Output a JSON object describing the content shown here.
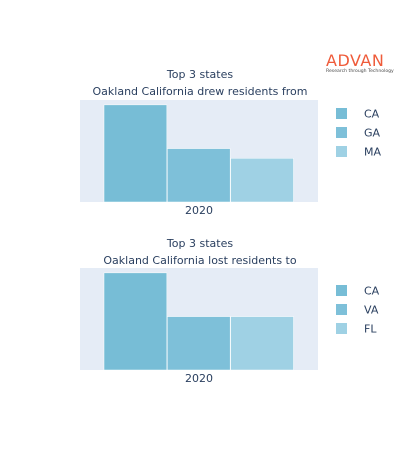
{
  "logo": {
    "name": "ADVAN",
    "tagline": "Research through Technology"
  },
  "colors": {
    "plot_background": "#e5ecf6",
    "bar_1": "#77bdd6",
    "bar_2": "#7ec0d9",
    "bar_3": "#9fd1e4",
    "text": "#2a3f5f"
  },
  "chart_data": [
    {
      "type": "bar",
      "title_lines": [
        "Top 3 states",
        "Oakland California drew residents from"
      ],
      "categories": [
        "2020"
      ],
      "series": [
        {
          "name": "CA",
          "values": [
            100
          ]
        },
        {
          "name": "GA",
          "values": [
            55
          ]
        },
        {
          "name": "MA",
          "values": [
            45
          ]
        }
      ],
      "ylim": [
        0,
        105
      ],
      "grid": false,
      "legend": "right"
    },
    {
      "type": "bar",
      "title_lines": [
        "Top 3 states",
        "Oakland California lost residents to"
      ],
      "categories": [
        "2020"
      ],
      "series": [
        {
          "name": "CA",
          "values": [
            100
          ]
        },
        {
          "name": "VA",
          "values": [
            55
          ]
        },
        {
          "name": "FL",
          "values": [
            55
          ]
        }
      ],
      "ylim": [
        0,
        105
      ],
      "grid": false,
      "legend": "right"
    }
  ]
}
